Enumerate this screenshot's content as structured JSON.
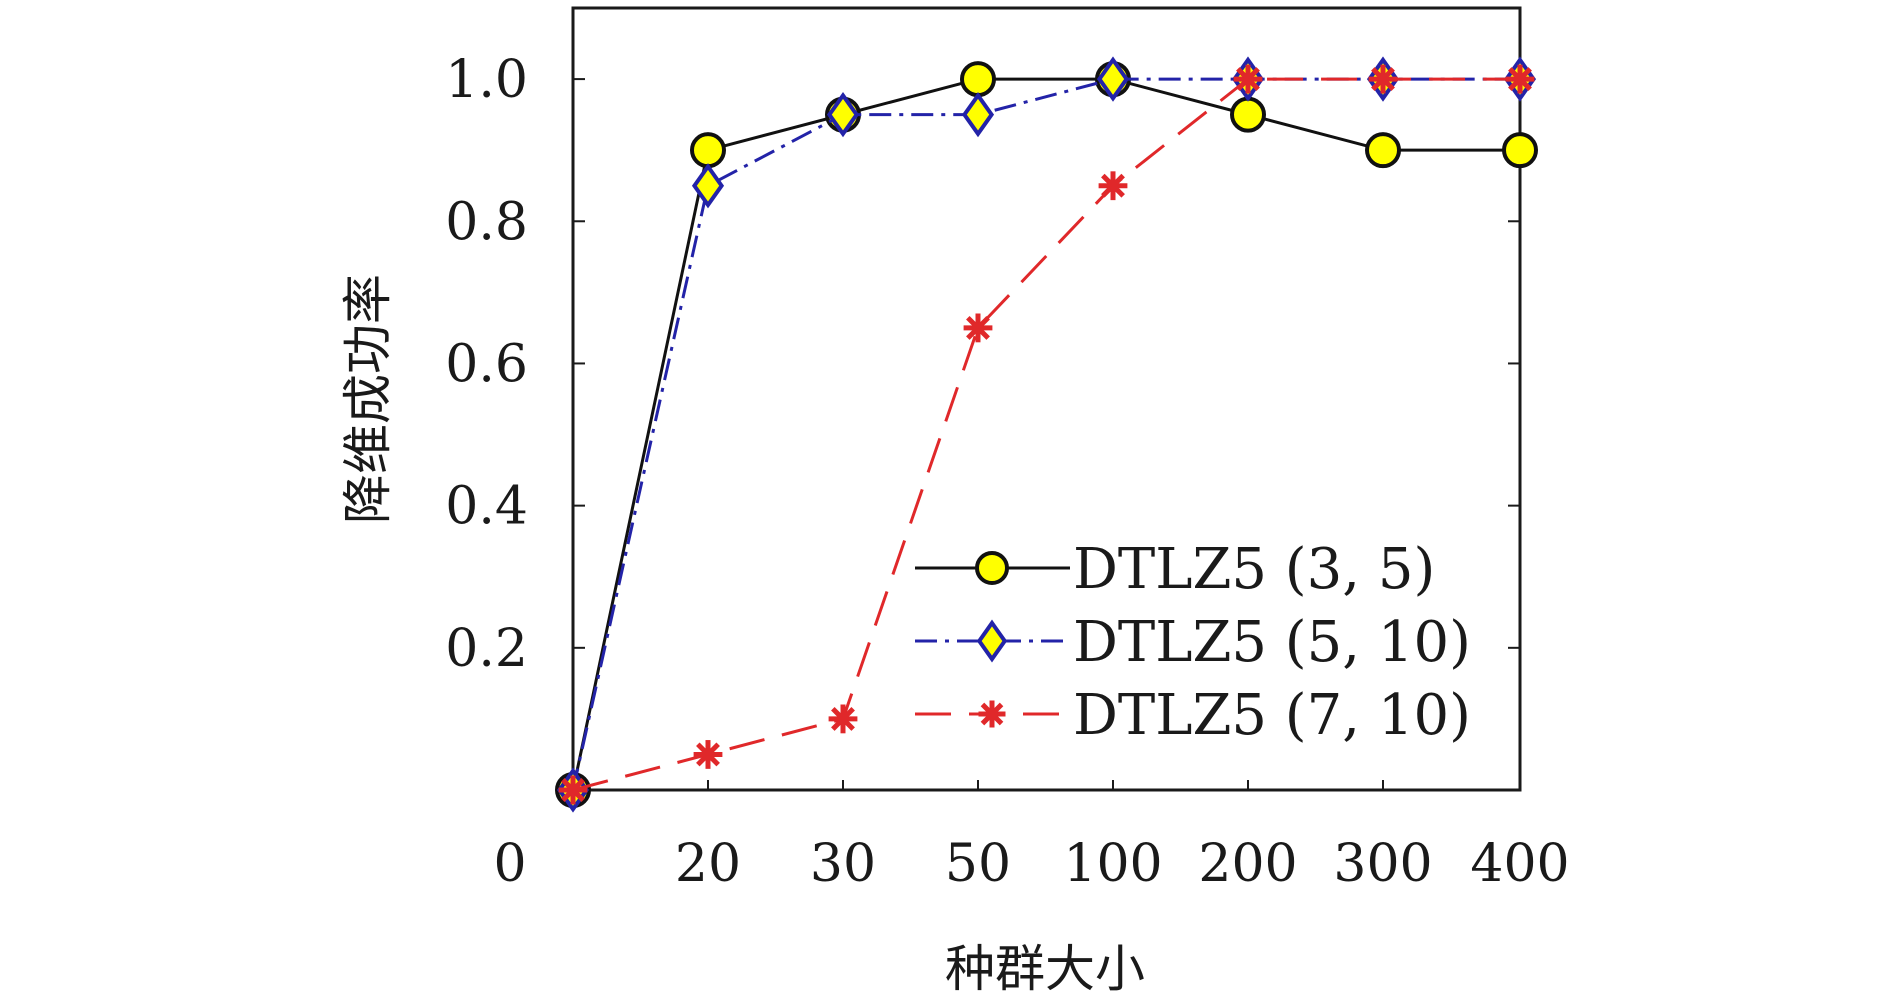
{
  "chart_data": {
    "type": "line",
    "xlabel": "种群大小",
    "ylabel": "降维成功率",
    "categories": [
      "0",
      "20",
      "30",
      "50",
      "100",
      "200",
      "300",
      "400"
    ],
    "y_ticks": [
      "0.2",
      "0.4",
      "0.6",
      "0.8",
      "1.0"
    ],
    "ylim": [
      0,
      1.1
    ],
    "grid": false,
    "legend_position": "lower-right",
    "series": [
      {
        "name": "DTLZ5 (3, 5)",
        "values": [
          0.0,
          0.9,
          0.95,
          1.0,
          1.0,
          0.95,
          0.9,
          0.9
        ],
        "line_color": "#111111",
        "line_style": "solid",
        "marker": "circle",
        "marker_fill": "#ffff00",
        "marker_edge": "#111111"
      },
      {
        "name": "DTLZ5 (5, 10)",
        "values": [
          0.0,
          0.85,
          0.95,
          0.95,
          1.0,
          1.0,
          1.0,
          1.0
        ],
        "line_color": "#2323a8",
        "line_style": "dashdot",
        "marker": "diamond",
        "marker_fill": "#ffff00",
        "marker_edge": "#2323a8"
      },
      {
        "name": "DTLZ5 (7, 10)",
        "values": [
          0.0,
          0.05,
          0.1,
          0.65,
          0.85,
          1.0,
          1.0,
          1.0
        ],
        "line_color": "#e0282a",
        "line_style": "dashed",
        "marker": "asterisk",
        "marker_fill": "#e0282a",
        "marker_edge": "#e0282a"
      }
    ]
  }
}
